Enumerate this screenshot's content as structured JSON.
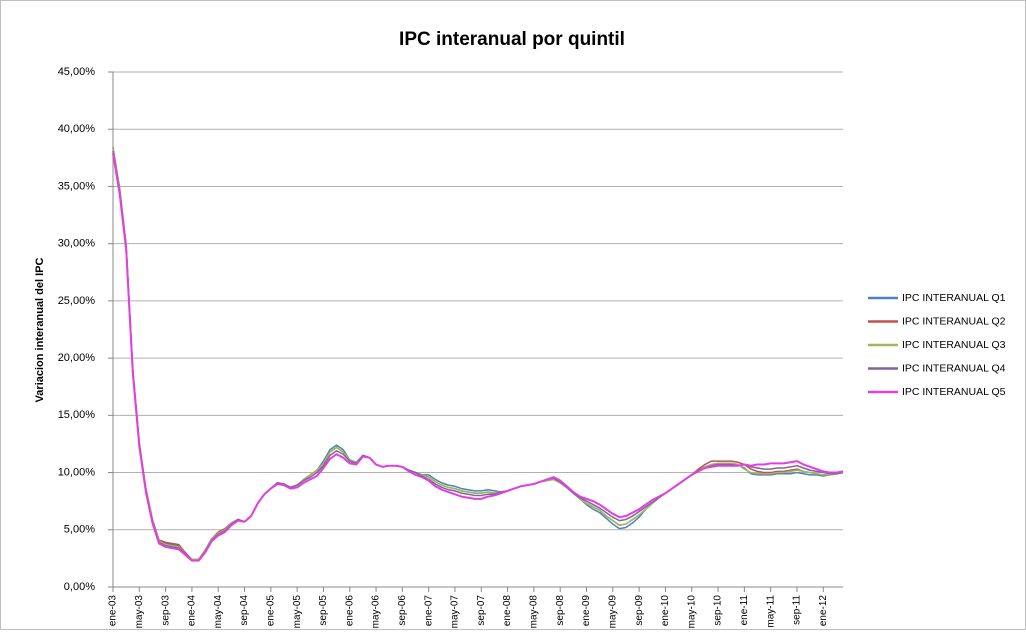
{
  "chart_data": {
    "type": "line",
    "title": "IPC interanual por quintil",
    "y_label": "Variacion interanual del IPC",
    "legend": "right",
    "grid": true,
    "categories": [
      "ene-03",
      null,
      null,
      null,
      "may-03",
      null,
      null,
      null,
      "sep-03",
      null,
      null,
      null,
      "ene-04",
      null,
      null,
      null,
      "may-04",
      null,
      null,
      null,
      "sep-04",
      null,
      null,
      null,
      "ene-05",
      null,
      null,
      null,
      "may-05",
      null,
      null,
      null,
      "sep-05",
      null,
      null,
      null,
      "ene-06",
      null,
      null,
      null,
      "may-06",
      null,
      null,
      null,
      "sep-06",
      null,
      null,
      null,
      "ene-07",
      null,
      null,
      null,
      "may-07",
      null,
      null,
      null,
      "sep-07",
      null,
      null,
      null,
      "ene-08",
      null,
      null,
      null,
      "may-08",
      null,
      null,
      null,
      "sep-08",
      null,
      null,
      null,
      "ene-09",
      null,
      null,
      null,
      "may-09",
      null,
      null,
      null,
      "sep-09",
      null,
      null,
      null,
      "ene-10",
      null,
      null,
      null,
      "may-10",
      null,
      null,
      null,
      "sep-10",
      null,
      null,
      null,
      "ene-11",
      null,
      null,
      null,
      "may-11",
      null,
      null,
      null,
      "sep-11",
      null,
      null,
      null,
      "ene-12",
      null,
      null,
      null
    ],
    "ylim": [
      0,
      45
    ],
    "yticks": [
      {
        "value": 0,
        "label": "0,00%"
      },
      {
        "value": 5,
        "label": "5,00%"
      },
      {
        "value": 10,
        "label": "10,00%"
      },
      {
        "value": 15,
        "label": "15,00%"
      },
      {
        "value": 20,
        "label": "20,00%"
      },
      {
        "value": 25,
        "label": "25,00%"
      },
      {
        "value": 30,
        "label": "30,00%"
      },
      {
        "value": 35,
        "label": "35,00%"
      },
      {
        "value": 40,
        "label": "40,00%"
      },
      {
        "value": 45,
        "label": "45,00%"
      }
    ],
    "series": [
      {
        "name": "IPC INTERANUAL Q1",
        "color": "#4f81bd",
        "values": [
          38.2,
          34.7,
          29.7,
          19.0,
          12.5,
          8.5,
          5.8,
          4.0,
          3.8,
          3.7,
          3.6,
          3.0,
          2.4,
          2.4,
          3.2,
          4.2,
          4.7,
          5.0,
          5.6,
          5.9,
          5.7,
          6.2,
          7.3,
          8.1,
          8.6,
          9.1,
          9.0,
          8.7,
          8.9,
          9.4,
          9.8,
          10.2,
          11.0,
          12.0,
          12.4,
          12.0,
          11.1,
          10.9,
          11.5,
          11.3,
          10.7,
          10.5,
          10.6,
          10.6,
          10.5,
          10.2,
          10.0,
          9.8,
          9.8,
          9.4,
          9.1,
          8.9,
          8.8,
          8.6,
          8.5,
          8.4,
          8.4,
          8.5,
          8.4,
          8.3,
          8.4,
          8.6,
          8.8,
          8.9,
          9.0,
          9.2,
          9.3,
          9.4,
          9.1,
          8.7,
          8.2,
          7.7,
          7.2,
          6.8,
          6.5,
          6.0,
          5.5,
          5.1,
          5.2,
          5.6,
          6.1,
          6.8,
          7.3,
          7.8,
          8.2,
          8.6,
          9.0,
          9.4,
          9.8,
          10.2,
          10.5,
          10.7,
          10.8,
          10.8,
          10.8,
          10.7,
          10.4,
          9.9,
          9.8,
          9.8,
          9.8,
          9.9,
          9.9,
          9.9,
          10.0,
          9.9,
          9.8,
          9.8,
          9.7,
          9.8,
          9.9,
          10.0
        ]
      },
      {
        "name": "IPC INTERANUAL Q2",
        "color": "#c0504d",
        "values": [
          38.4,
          34.9,
          29.9,
          19.1,
          12.6,
          8.6,
          5.9,
          4.1,
          3.9,
          3.8,
          3.7,
          3.0,
          2.4,
          2.4,
          3.2,
          4.2,
          4.8,
          5.1,
          5.6,
          5.9,
          5.7,
          6.2,
          7.3,
          8.1,
          8.6,
          9.1,
          9.0,
          8.7,
          8.9,
          9.4,
          9.8,
          10.2,
          10.8,
          11.8,
          12.2,
          11.8,
          11.1,
          10.9,
          11.5,
          11.3,
          10.7,
          10.5,
          10.6,
          10.6,
          10.5,
          10.2,
          10.0,
          9.8,
          9.6,
          9.2,
          8.9,
          8.7,
          8.6,
          8.4,
          8.3,
          8.2,
          8.2,
          8.3,
          8.2,
          8.3,
          8.4,
          8.6,
          8.8,
          8.9,
          9.0,
          9.2,
          9.3,
          9.4,
          9.1,
          8.7,
          8.2,
          7.7,
          7.3,
          7.0,
          6.7,
          6.2,
          5.8,
          5.4,
          5.5,
          5.9,
          6.3,
          6.8,
          7.3,
          7.8,
          8.2,
          8.6,
          9.0,
          9.4,
          9.8,
          10.3,
          10.7,
          11.0,
          11.0,
          11.0,
          11.0,
          10.9,
          10.7,
          10.3,
          10.1,
          10.0,
          10.0,
          10.1,
          10.1,
          10.2,
          10.3,
          10.1,
          10.0,
          9.9,
          9.8,
          9.8,
          9.9,
          10.0
        ]
      },
      {
        "name": "IPC INTERANUAL Q3",
        "color": "#9bbb59",
        "values": [
          38.3,
          34.8,
          29.8,
          19.0,
          12.5,
          8.5,
          5.8,
          4.0,
          3.7,
          3.6,
          3.5,
          2.9,
          2.4,
          2.4,
          3.2,
          4.2,
          4.7,
          5.0,
          5.6,
          5.9,
          5.7,
          6.2,
          7.3,
          8.1,
          8.6,
          9.1,
          9.0,
          8.7,
          8.9,
          9.4,
          9.8,
          10.2,
          10.8,
          11.8,
          12.2,
          11.8,
          11.1,
          10.9,
          11.5,
          11.3,
          10.7,
          10.5,
          10.6,
          10.6,
          10.5,
          10.2,
          10.0,
          9.8,
          9.6,
          9.2,
          8.9,
          8.7,
          8.6,
          8.4,
          8.3,
          8.2,
          8.2,
          8.3,
          8.2,
          8.3,
          8.4,
          8.6,
          8.8,
          8.9,
          9.0,
          9.2,
          9.3,
          9.4,
          9.1,
          8.7,
          8.2,
          7.7,
          7.3,
          7.0,
          6.7,
          6.2,
          5.8,
          5.4,
          5.5,
          5.9,
          6.3,
          6.8,
          7.3,
          7.8,
          8.2,
          8.6,
          9.0,
          9.4,
          9.8,
          10.2,
          10.5,
          10.7,
          10.8,
          10.8,
          10.8,
          10.7,
          10.3,
          10.0,
          9.9,
          9.9,
          9.9,
          10.0,
          10.0,
          10.1,
          10.2,
          10.1,
          10.0,
          9.9,
          9.8,
          9.8,
          9.9,
          10.0
        ]
      },
      {
        "name": "IPC INTERANUAL Q4",
        "color": "#8064a2",
        "values": [
          38.1,
          34.6,
          29.7,
          18.9,
          12.4,
          8.4,
          5.7,
          3.9,
          3.6,
          3.5,
          3.4,
          2.9,
          2.3,
          2.3,
          3.1,
          4.1,
          4.6,
          4.9,
          5.5,
          5.9,
          5.7,
          6.2,
          7.3,
          8.1,
          8.6,
          9.1,
          9.0,
          8.7,
          8.9,
          9.3,
          9.6,
          10.0,
          10.6,
          11.5,
          11.9,
          11.6,
          11.0,
          10.8,
          11.5,
          11.3,
          10.7,
          10.5,
          10.6,
          10.6,
          10.5,
          10.2,
          10.0,
          9.7,
          9.4,
          9.0,
          8.7,
          8.5,
          8.4,
          8.2,
          8.1,
          8.0,
          8.0,
          8.1,
          8.1,
          8.3,
          8.4,
          8.6,
          8.8,
          8.9,
          9.0,
          9.2,
          9.4,
          9.5,
          9.2,
          8.7,
          8.2,
          7.8,
          7.5,
          7.2,
          6.9,
          6.5,
          6.1,
          5.8,
          5.9,
          6.2,
          6.6,
          7.0,
          7.4,
          7.8,
          8.2,
          8.6,
          9.0,
          9.4,
          9.8,
          10.2,
          10.4,
          10.6,
          10.7,
          10.7,
          10.7,
          10.6,
          10.7,
          10.5,
          10.4,
          10.3,
          10.3,
          10.4,
          10.4,
          10.5,
          10.6,
          10.4,
          10.2,
          10.1,
          10.0,
          9.9,
          9.9,
          10.0
        ]
      },
      {
        "name": "IPC INTERANUAL Q5",
        "color": "#e040e0",
        "values": [
          37.9,
          34.4,
          29.5,
          18.8,
          12.3,
          8.3,
          5.6,
          3.8,
          3.5,
          3.4,
          3.3,
          2.8,
          2.3,
          2.3,
          3.0,
          4.0,
          4.5,
          4.8,
          5.4,
          5.8,
          5.7,
          6.2,
          7.3,
          8.1,
          8.6,
          9.0,
          8.9,
          8.6,
          8.7,
          9.1,
          9.4,
          9.7,
          10.4,
          11.2,
          11.6,
          11.3,
          10.8,
          10.7,
          11.4,
          11.3,
          10.7,
          10.5,
          10.6,
          10.6,
          10.5,
          10.1,
          9.8,
          9.6,
          9.3,
          8.8,
          8.5,
          8.3,
          8.1,
          7.9,
          7.8,
          7.7,
          7.7,
          7.9,
          8.0,
          8.2,
          8.4,
          8.6,
          8.8,
          8.9,
          9.0,
          9.2,
          9.4,
          9.6,
          9.3,
          8.8,
          8.3,
          7.9,
          7.7,
          7.5,
          7.2,
          6.8,
          6.4,
          6.1,
          6.2,
          6.5,
          6.8,
          7.2,
          7.6,
          7.9,
          8.2,
          8.6,
          9.0,
          9.4,
          9.8,
          10.1,
          10.4,
          10.5,
          10.6,
          10.6,
          10.6,
          10.6,
          10.7,
          10.6,
          10.7,
          10.7,
          10.8,
          10.8,
          10.8,
          10.9,
          11.0,
          10.7,
          10.5,
          10.3,
          10.1,
          10.0,
          10.0,
          10.1
        ]
      }
    ]
  }
}
